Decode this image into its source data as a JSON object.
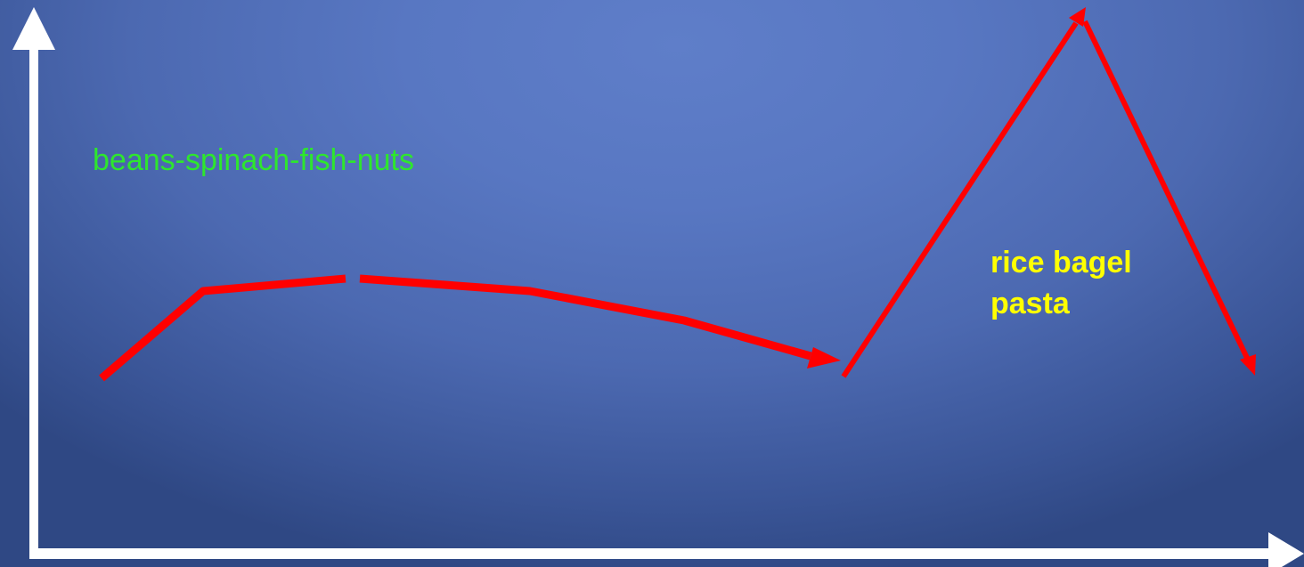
{
  "colors": {
    "axis": "#ffffff",
    "curve": "#ff0000",
    "green_text": "#2ee62e",
    "yellow_text": "#ffff00"
  },
  "labels": {
    "green": "beans-spinach-fish-nuts",
    "yellow": "rice  bagel\npasta"
  }
}
